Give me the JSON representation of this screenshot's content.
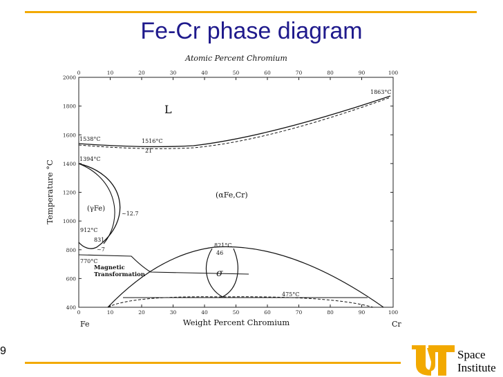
{
  "slide": {
    "title": "Fe-Cr phase diagram",
    "page_number": "9",
    "rule_color": "#F2A900",
    "title_color": "#1F1A8C"
  },
  "logo": {
    "line1": "Space",
    "line2": "Institute",
    "mark_color": "#F2A900"
  },
  "diagram": {
    "top_axis_label": "Atomic Percent Chromium",
    "bottom_axis_label": "Weight Percent Chromium",
    "y_axis_label": "Temperature °C",
    "left_element": "Fe",
    "right_element": "Cr",
    "x_ticks": [
      "0",
      "10",
      "20",
      "30",
      "40",
      "50",
      "60",
      "70",
      "80",
      "90",
      "100"
    ],
    "y_ticks": [
      "400",
      "600",
      "800",
      "1000",
      "1200",
      "1400",
      "1600",
      "1800",
      "2000"
    ],
    "phase_labels": {
      "liquid": "L",
      "gamma": "(γFe)",
      "alpha": "(αFe,Cr)",
      "sigma": "σ",
      "magnetic": [
        "Magnetic",
        "Transformation"
      ]
    },
    "annotations": {
      "fe_melting": "1538°C",
      "min_melting": "1516°C",
      "min_comp": "21",
      "cr_melting": "1863°C",
      "fe_gamma_delta": "1394°C",
      "fe_alpha_gamma": "912°C",
      "loop_comp": "~12.7",
      "loop_temp": "831",
      "loop_bottom_comp": "~7",
      "curie": "770°C",
      "sigma_max": "821°C",
      "sigma_comp": "46",
      "miscibility": "475°C"
    }
  }
}
